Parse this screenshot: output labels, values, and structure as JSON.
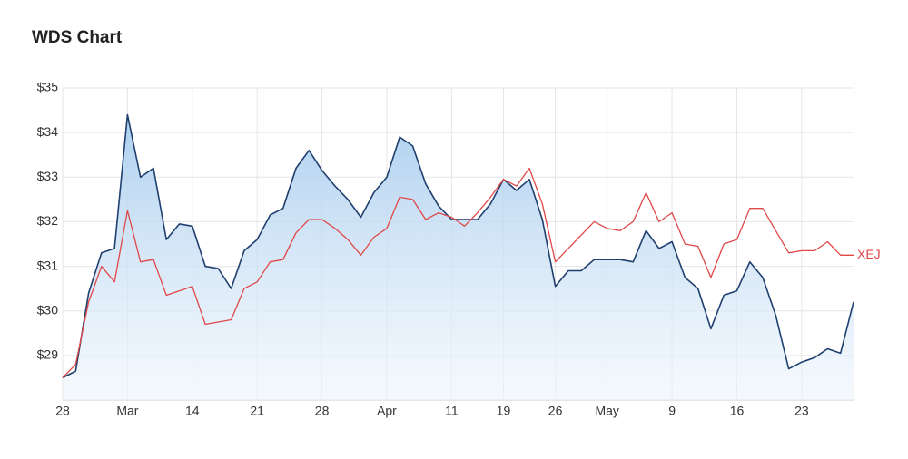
{
  "chart_data": {
    "type": "line",
    "title": "WDS Chart",
    "categories": [
      "28",
      null,
      null,
      null,
      null,
      "Mar",
      null,
      null,
      null,
      null,
      "14",
      null,
      null,
      null,
      null,
      "21",
      null,
      null,
      null,
      null,
      "28",
      null,
      null,
      null,
      null,
      "Apr",
      null,
      null,
      null,
      null,
      "11",
      null,
      null,
      null,
      "19",
      null,
      null,
      null,
      "26",
      null,
      null,
      null,
      "May",
      null,
      null,
      null,
      null,
      "9",
      null,
      null,
      null,
      null,
      "16",
      null,
      null,
      null,
      null,
      "23",
      null,
      null,
      null,
      null
    ],
    "series": [
      {
        "color": "#1f3f6e",
        "area": true,
        "values": [
          28.5,
          28.65,
          30.4,
          31.3,
          31.4,
          34.4,
          33.0,
          33.2,
          31.6,
          31.95,
          31.9,
          31.0,
          30.95,
          30.5,
          31.35,
          31.6,
          32.15,
          32.3,
          33.2,
          33.6,
          33.15,
          32.8,
          32.5,
          32.1,
          32.65,
          33.0,
          33.9,
          33.7,
          32.85,
          32.35,
          32.05,
          32.05,
          32.05,
          32.4,
          32.95,
          32.7,
          32.95,
          32.05,
          30.55,
          30.9,
          30.9,
          31.15,
          31.15,
          31.15,
          31.1,
          31.8,
          31.4,
          31.55,
          30.75,
          30.5,
          29.6,
          30.35,
          30.45,
          31.1,
          30.75,
          29.9,
          28.7,
          28.85,
          28.95,
          29.15,
          29.05,
          30.2
        ]
      },
      {
        "name": "XEJ",
        "color": "#e04848",
        "area": false,
        "values": [
          28.5,
          28.8,
          30.2,
          31.0,
          30.65,
          32.25,
          31.1,
          31.15,
          30.35,
          30.45,
          30.55,
          29.7,
          29.75,
          29.8,
          30.5,
          30.65,
          31.1,
          31.15,
          31.75,
          32.05,
          32.05,
          31.85,
          31.6,
          31.25,
          31.65,
          31.85,
          32.55,
          32.5,
          32.05,
          32.2,
          32.1,
          31.9,
          32.2,
          32.55,
          32.95,
          32.8,
          33.2,
          32.4,
          31.1,
          31.4,
          31.7,
          32.0,
          31.85,
          31.8,
          32.0,
          32.65,
          32.0,
          32.2,
          31.5,
          31.45,
          30.75,
          31.5,
          31.6,
          32.3,
          32.3,
          31.8,
          31.3,
          31.35,
          31.35,
          31.55,
          31.25,
          31.25
        ]
      }
    ],
    "ylim": [
      28,
      35
    ],
    "yticks": [
      {
        "value": 29,
        "label": "$29"
      },
      {
        "value": 30,
        "label": "$30"
      },
      {
        "value": 31,
        "label": "$31"
      },
      {
        "value": 32,
        "label": "$32"
      },
      {
        "value": 33,
        "label": "$33"
      },
      {
        "value": 34,
        "label": "$34"
      },
      {
        "value": 35,
        "label": "$35"
      }
    ],
    "grid": true
  }
}
